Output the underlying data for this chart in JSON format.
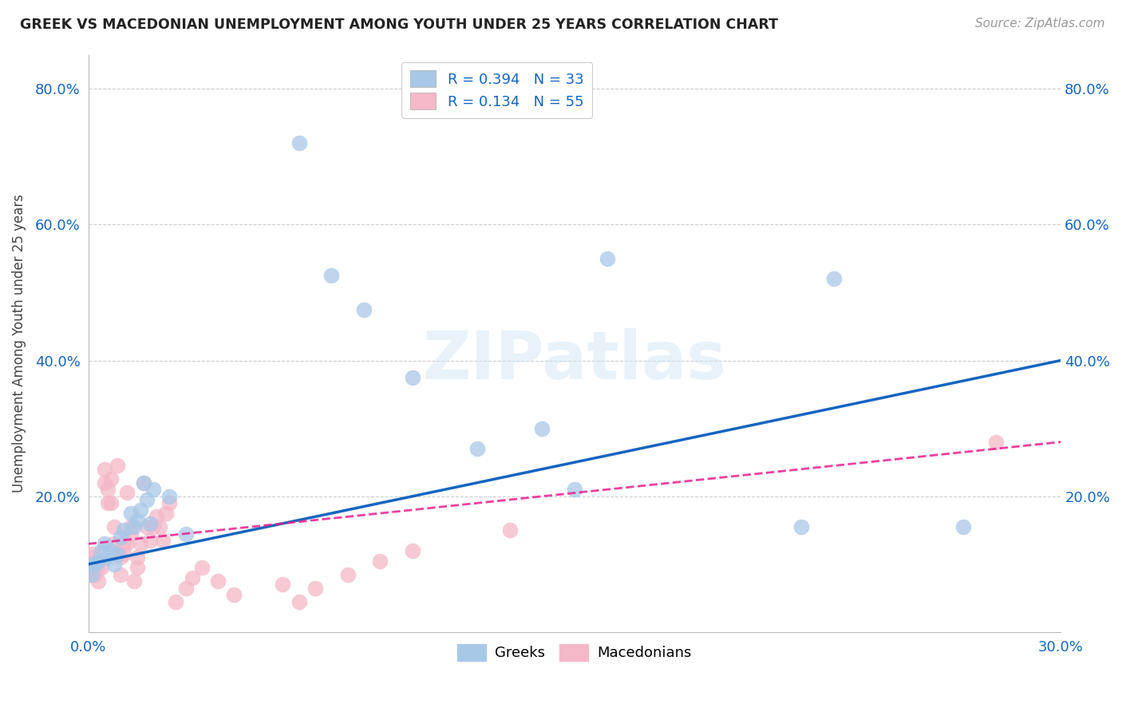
{
  "title": "GREEK VS MACEDONIAN UNEMPLOYMENT AMONG YOUTH UNDER 25 YEARS CORRELATION CHART",
  "source": "Source: ZipAtlas.com",
  "ylabel": "Unemployment Among Youth under 25 years",
  "xlim": [
    0.0,
    0.3
  ],
  "ylim": [
    0.0,
    0.85
  ],
  "xticks": [
    0.0,
    0.05,
    0.1,
    0.15,
    0.2,
    0.25,
    0.3
  ],
  "yticks": [
    0.0,
    0.2,
    0.4,
    0.6,
    0.8
  ],
  "ytick_labels": [
    "",
    "20.0%",
    "40.0%",
    "60.0%",
    "80.0%"
  ],
  "xtick_labels": [
    "0.0%",
    "",
    "",
    "",
    "",
    "",
    "30.0%"
  ],
  "greek_R": "0.394",
  "greek_N": "33",
  "mac_R": "0.134",
  "mac_N": "55",
  "greek_color": "#a8c8e8",
  "mac_color": "#f4b8c8",
  "greek_line_color": "#1565C0",
  "mac_line_color": "#E91E8C",
  "background_color": "#ffffff",
  "watermark": "ZIPatlas",
  "greek_points_x": [
    0.001,
    0.001,
    0.002,
    0.003,
    0.004,
    0.005,
    0.006,
    0.007,
    0.008,
    0.009,
    0.01,
    0.011,
    0.013,
    0.014,
    0.015,
    0.016,
    0.017,
    0.018,
    0.019,
    0.02,
    0.025,
    0.03,
    0.065,
    0.075,
    0.085,
    0.1,
    0.12,
    0.14,
    0.15,
    0.16,
    0.22,
    0.23,
    0.27
  ],
  "greek_points_y": [
    0.1,
    0.085,
    0.1,
    0.105,
    0.12,
    0.13,
    0.11,
    0.12,
    0.1,
    0.115,
    0.14,
    0.15,
    0.175,
    0.155,
    0.165,
    0.18,
    0.22,
    0.195,
    0.16,
    0.21,
    0.2,
    0.145,
    0.72,
    0.525,
    0.475,
    0.375,
    0.27,
    0.3,
    0.21,
    0.55,
    0.155,
    0.52,
    0.155
  ],
  "mac_points_x": [
    0.0,
    0.0,
    0.001,
    0.001,
    0.002,
    0.002,
    0.003,
    0.003,
    0.003,
    0.004,
    0.004,
    0.005,
    0.005,
    0.006,
    0.006,
    0.007,
    0.007,
    0.008,
    0.008,
    0.009,
    0.01,
    0.01,
    0.011,
    0.011,
    0.012,
    0.012,
    0.013,
    0.013,
    0.014,
    0.015,
    0.015,
    0.016,
    0.017,
    0.018,
    0.019,
    0.02,
    0.021,
    0.022,
    0.023,
    0.024,
    0.025,
    0.027,
    0.03,
    0.032,
    0.035,
    0.04,
    0.045,
    0.06,
    0.065,
    0.07,
    0.08,
    0.09,
    0.1,
    0.13,
    0.28
  ],
  "mac_points_y": [
    0.1,
    0.085,
    0.095,
    0.115,
    0.11,
    0.085,
    0.095,
    0.105,
    0.075,
    0.095,
    0.115,
    0.22,
    0.24,
    0.19,
    0.21,
    0.225,
    0.19,
    0.13,
    0.155,
    0.245,
    0.085,
    0.11,
    0.115,
    0.13,
    0.205,
    0.13,
    0.145,
    0.155,
    0.075,
    0.095,
    0.11,
    0.13,
    0.22,
    0.155,
    0.135,
    0.155,
    0.17,
    0.155,
    0.135,
    0.175,
    0.19,
    0.045,
    0.065,
    0.08,
    0.095,
    0.075,
    0.055,
    0.07,
    0.045,
    0.065,
    0.085,
    0.105,
    0.12,
    0.15,
    0.28
  ]
}
